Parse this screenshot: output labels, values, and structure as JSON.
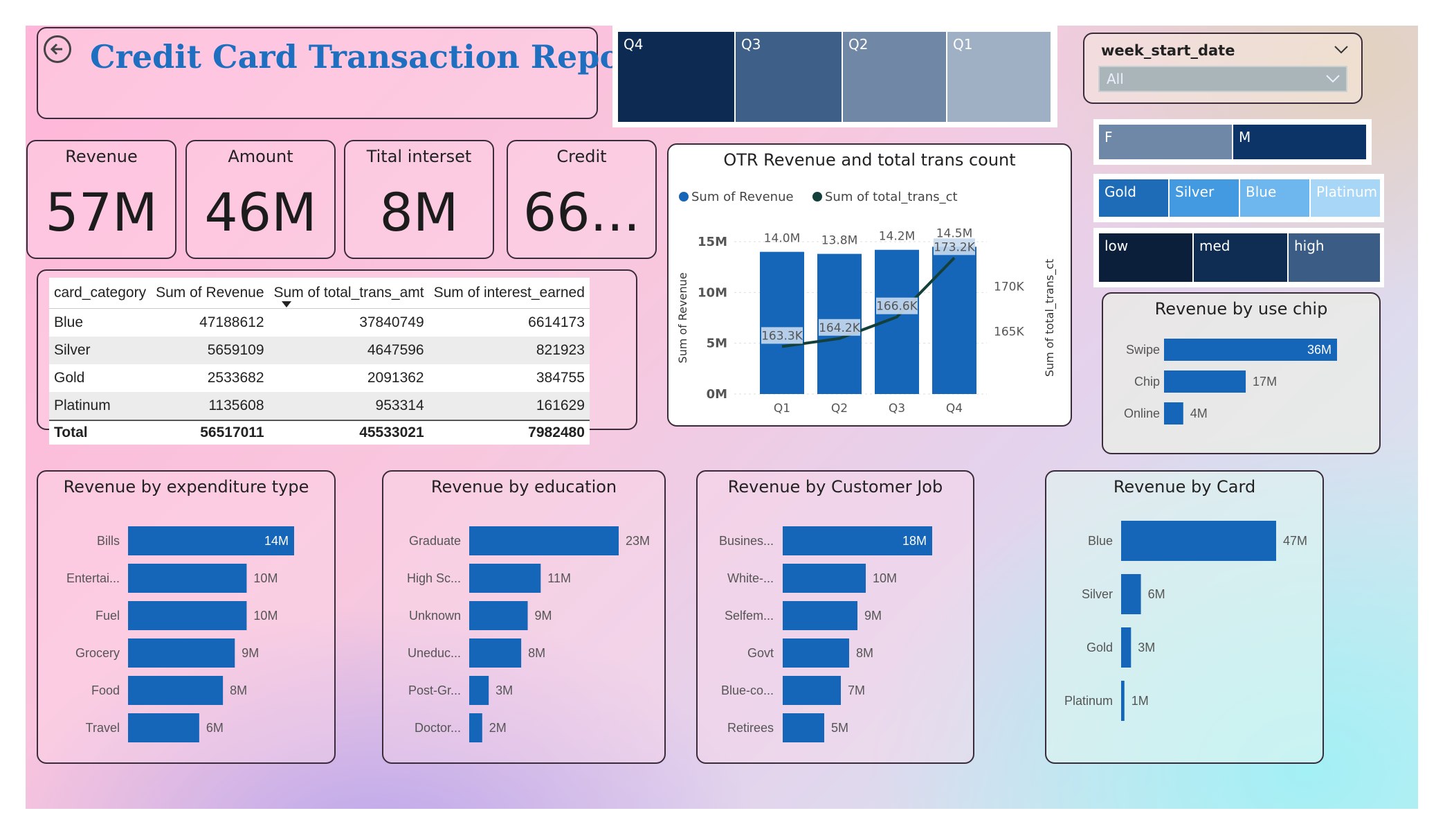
{
  "report": {
    "title": "Credit Card Transaction Report"
  },
  "kpis": [
    {
      "label": "Revenue",
      "value": "57M"
    },
    {
      "label": "Amount",
      "value": "46M"
    },
    {
      "label": "Tital interset",
      "value": "8M"
    },
    {
      "label": "Credit",
      "value": "66..."
    }
  ],
  "quarters": [
    "Q4",
    "Q3",
    "Q2",
    "Q1"
  ],
  "week_slicer": {
    "label": "week_start_date",
    "value": "All"
  },
  "gender": [
    "F",
    "M"
  ],
  "card_types": [
    "Gold",
    "Silver",
    "Blue",
    "Platinum"
  ],
  "income_levels": [
    "low",
    "med",
    "high"
  ],
  "table": {
    "headers": [
      "card_category",
      "Sum of Revenue",
      "Sum of total_trans_amt",
      "Sum of interest_earned"
    ],
    "rows": [
      [
        "Blue",
        "47188612",
        "37840749",
        "6614173"
      ],
      [
        "Silver",
        "5659109",
        "4647596",
        "821923"
      ],
      [
        "Gold",
        "2533682",
        "2091362",
        "384755"
      ],
      [
        "Platinum",
        "1135608",
        "953314",
        "161629"
      ]
    ],
    "total": [
      "Total",
      "56517011",
      "45533021",
      "7982480"
    ]
  },
  "chart_data": [
    {
      "type": "bar",
      "title": "OTR Revenue and total trans count",
      "categories": [
        "Q1",
        "Q2",
        "Q3",
        "Q4"
      ],
      "series": [
        {
          "name": "Sum of Revenue",
          "values": [
            14.0,
            13.8,
            14.2,
            14.5
          ],
          "labels": [
            "14.0M",
            "13.8M",
            "14.2M",
            "14.5M"
          ]
        },
        {
          "name": "Sum of total_trans_ct",
          "type": "line",
          "values": [
            163.3,
            164.2,
            166.6,
            173.2
          ],
          "labels": [
            "163.3K",
            "164.2K",
            "166.6K",
            "173.2K"
          ]
        }
      ],
      "ylabel": "Sum of Revenue",
      "y2label": "Sum of total_trans_ct",
      "yticks": [
        "0M",
        "5M",
        "10M",
        "15M"
      ],
      "y2ticks": [
        "165K",
        "170K"
      ],
      "ylim": [
        0,
        15
      ],
      "y2lim": [
        158,
        175
      ],
      "legend": "top-left"
    },
    {
      "type": "bar",
      "title": "Revenue by use chip",
      "categories": [
        "Swipe",
        "Chip",
        "Online"
      ],
      "values": [
        36,
        17,
        4
      ],
      "labels": [
        "36M",
        "17M",
        "4M"
      ]
    },
    {
      "type": "bar",
      "title": "Revenue by expenditure type",
      "categories": [
        "Bills",
        "Entertai...",
        "Fuel",
        "Grocery",
        "Food",
        "Travel"
      ],
      "values": [
        14,
        10,
        10,
        9,
        8,
        6
      ],
      "labels": [
        "14M",
        "10M",
        "10M",
        "9M",
        "8M",
        "6M"
      ]
    },
    {
      "type": "bar",
      "title": "Revenue by education",
      "categories": [
        "Graduate",
        "High Sc...",
        "Unknown",
        "Uneduc...",
        "Post-Gr...",
        "Doctor..."
      ],
      "values": [
        23,
        11,
        9,
        8,
        3,
        2
      ],
      "labels": [
        "23M",
        "11M",
        "9M",
        "8M",
        "3M",
        "2M"
      ]
    },
    {
      "type": "bar",
      "title": "Revenue by Customer Job",
      "categories": [
        "Busines...",
        "White-...",
        "Selfem...",
        "Govt",
        "Blue-co...",
        "Retirees"
      ],
      "values": [
        18,
        10,
        9,
        8,
        7,
        5
      ],
      "labels": [
        "18M",
        "10M",
        "9M",
        "8M",
        "7M",
        "5M"
      ]
    },
    {
      "type": "bar",
      "title": "Revenue by Card",
      "categories": [
        "Blue",
        "Silver",
        "Gold",
        "Platinum"
      ],
      "values": [
        47,
        6,
        3,
        1
      ],
      "labels": [
        "47M",
        "6M",
        "3M",
        "1M"
      ]
    }
  ]
}
